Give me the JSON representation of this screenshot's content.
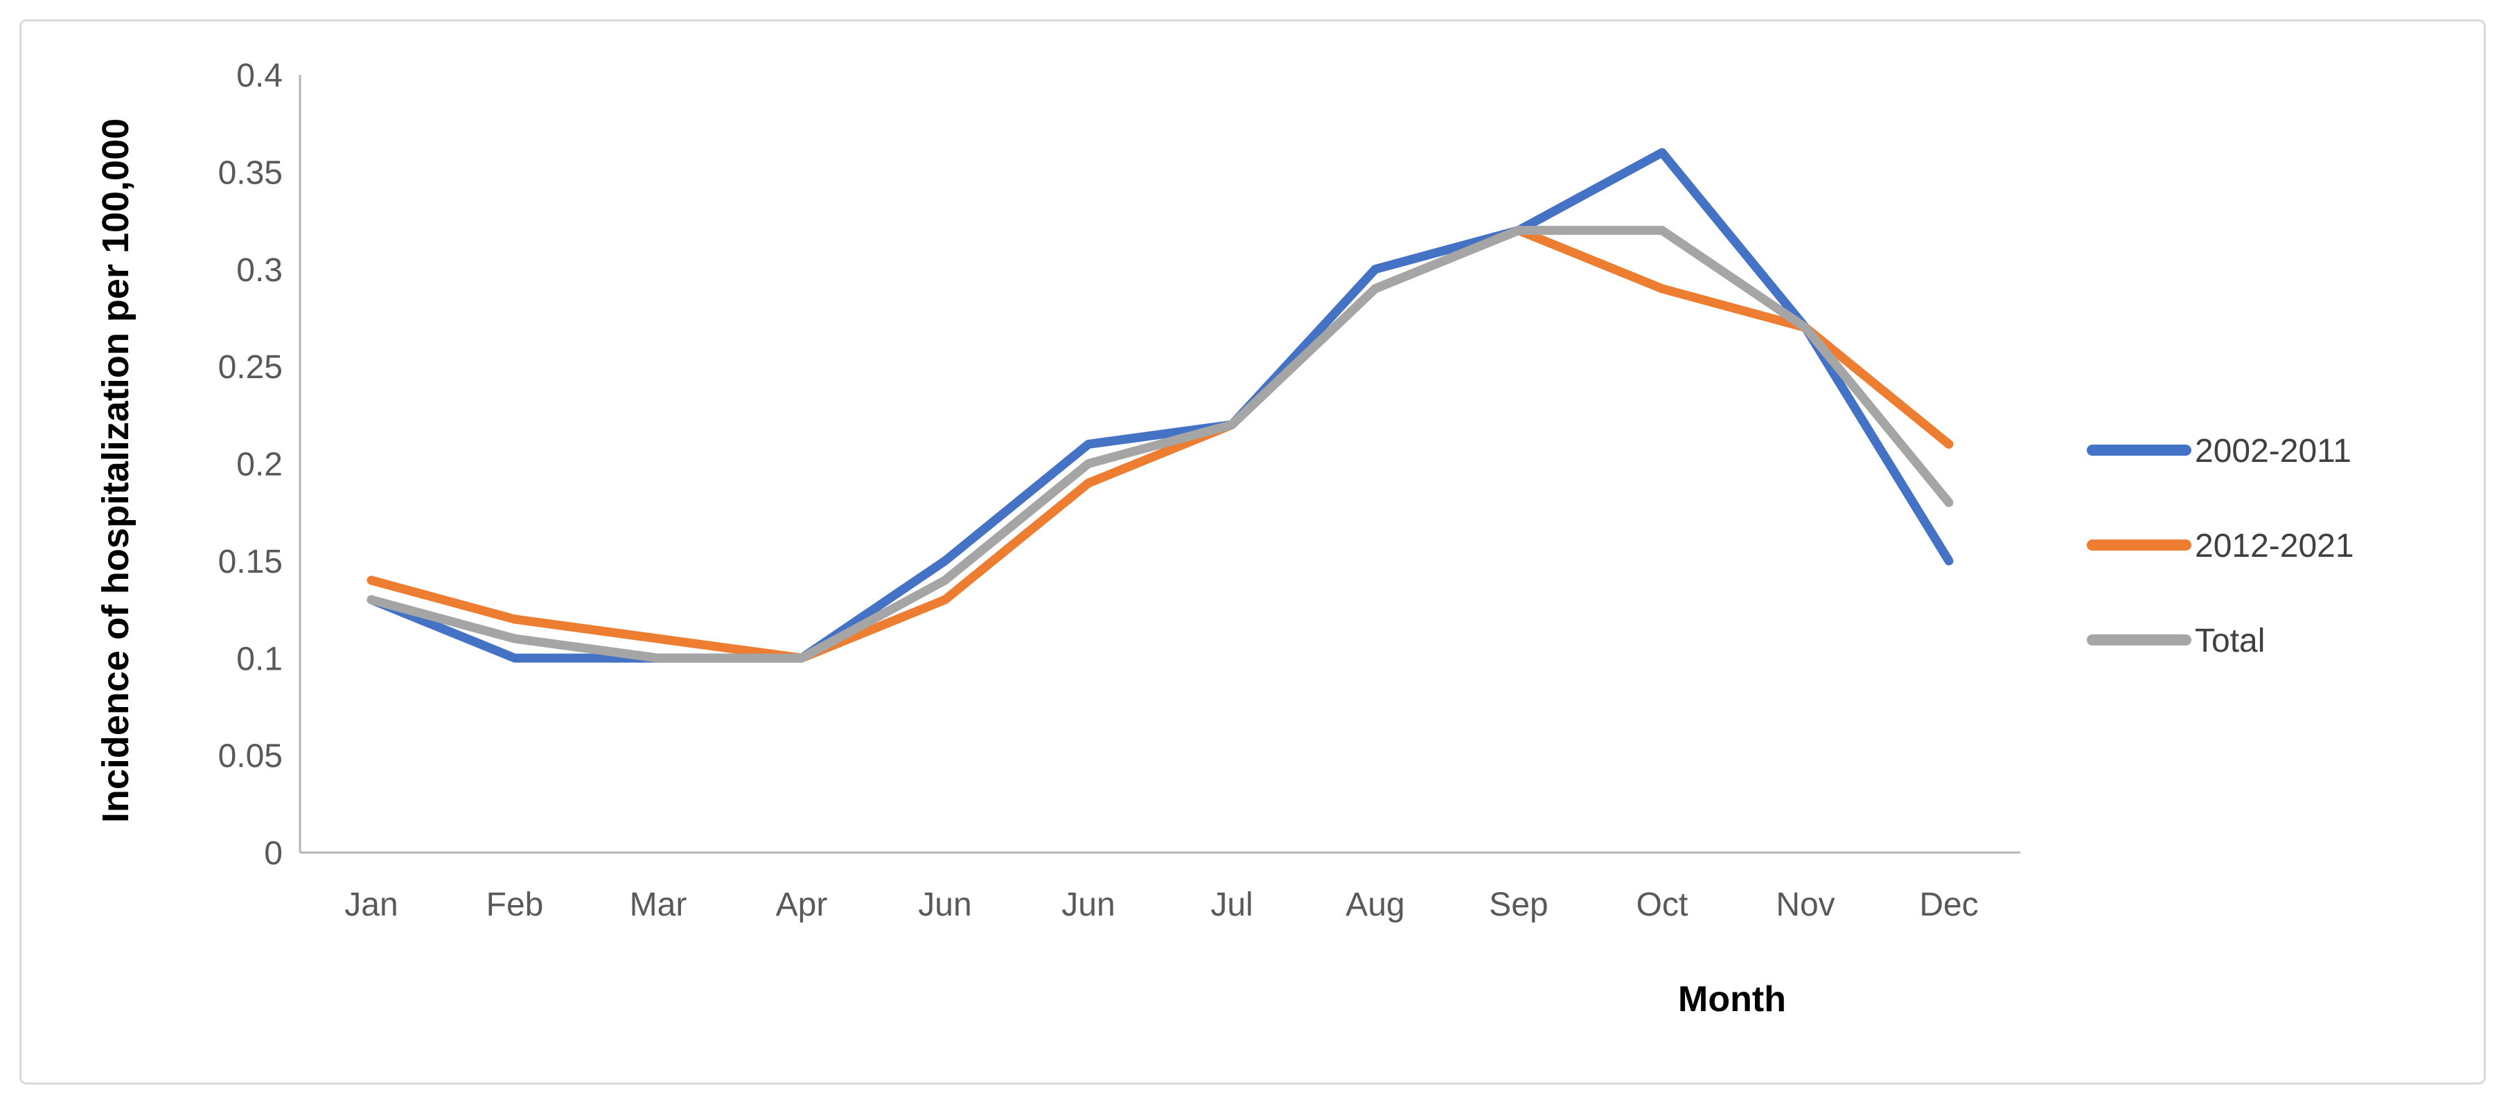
{
  "figure": {
    "background_color": "#ffffff",
    "frame_border_color": "#d9d9d9"
  },
  "chart_data": {
    "type": "line",
    "title": "",
    "xlabel": "Month",
    "ylabel": "Incidence of hospitalization per 100,000",
    "categories": [
      "Jan",
      "Feb",
      "Mar",
      "Apr",
      "Jun",
      "Jun",
      "Jul",
      "Aug",
      "Sep",
      "Oct",
      "Nov",
      "Dec"
    ],
    "yticks": [
      "0.4",
      "0.35",
      "0.3",
      "0.25",
      "0.2",
      "0.15",
      "0.1",
      "0.05",
      "0"
    ],
    "ylim": [
      0,
      0.4
    ],
    "ytick_interval": 0.05,
    "grid": false,
    "legend_position": "right",
    "series": [
      {
        "name": "2002-2011",
        "color": "#4472c4",
        "values": [
          0.13,
          0.1,
          0.1,
          0.1,
          0.15,
          0.21,
          0.22,
          0.3,
          0.32,
          0.36,
          0.27,
          0.15
        ]
      },
      {
        "name": "2012-2021",
        "color": "#ed7d31",
        "values": [
          0.14,
          0.12,
          0.11,
          0.1,
          0.13,
          0.19,
          0.22,
          0.29,
          0.32,
          0.29,
          0.27,
          0.21
        ]
      },
      {
        "name": "Total",
        "color": "#a5a5a5",
        "values": [
          0.13,
          0.11,
          0.1,
          0.1,
          0.14,
          0.2,
          0.22,
          0.29,
          0.32,
          0.32,
          0.27,
          0.18
        ]
      }
    ],
    "styles": {
      "axis_line_color": "#b4b4b4",
      "tick_label_color": "#595959",
      "legend_text_color": "#404040",
      "axis_title_color": "#000000"
    }
  }
}
